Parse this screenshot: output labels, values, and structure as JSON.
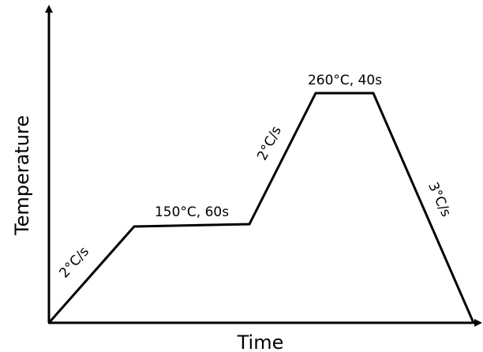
{
  "axes": {
    "x_label": "Time",
    "y_label": "Temperature"
  },
  "profile": {
    "segments": [
      {
        "id": "ramp-1",
        "label": "2°C/s"
      },
      {
        "id": "soak-1",
        "label": "150°C, 60s"
      },
      {
        "id": "ramp-2",
        "label": "2°C/s"
      },
      {
        "id": "peak",
        "label": "260°C, 40s"
      },
      {
        "id": "cool",
        "label": "3°C/s"
      }
    ]
  },
  "colors": {
    "line": "#000000",
    "background": "#ffffff"
  }
}
